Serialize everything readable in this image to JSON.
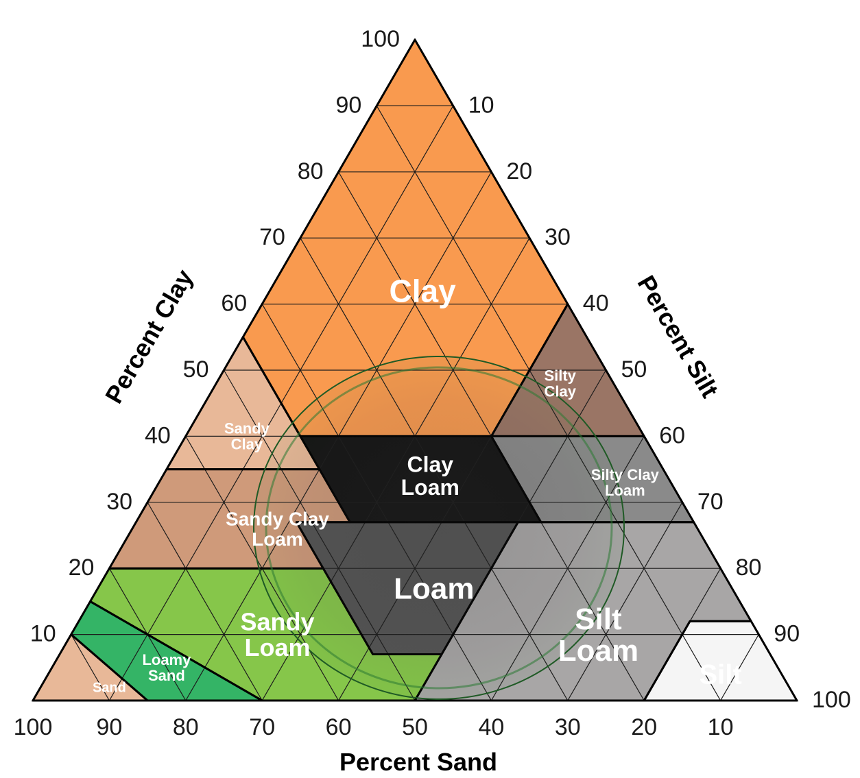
{
  "diagram": {
    "type": "soil-texture-triangle",
    "axes": {
      "clay": {
        "title": "Percent Clay",
        "ticks": [
          "10",
          "20",
          "30",
          "40",
          "50",
          "60",
          "70",
          "80",
          "90",
          "100"
        ]
      },
      "silt": {
        "title": "Percent Silt",
        "ticks": [
          "10",
          "20",
          "30",
          "40",
          "50",
          "60",
          "70",
          "80",
          "90",
          "100"
        ]
      },
      "sand": {
        "title": "Percent Sand",
        "ticks": [
          "100",
          "90",
          "80",
          "70",
          "60",
          "50",
          "40",
          "30",
          "20",
          "10"
        ]
      }
    },
    "regions": [
      {
        "id": "clay",
        "lines": [
          "Clay"
        ],
        "color": "#f99a4f"
      },
      {
        "id": "silty-clay",
        "lines": [
          "Silty",
          "Clay"
        ],
        "color": "#9a7565"
      },
      {
        "id": "sandy-clay",
        "lines": [
          "Sandy",
          "Clay"
        ],
        "color": "#e8b898"
      },
      {
        "id": "clay-loam",
        "lines": [
          "Clay",
          "Loam"
        ],
        "color": "#141414"
      },
      {
        "id": "silty-clay-loam",
        "lines": [
          "Silty Clay",
          "Loam"
        ],
        "color": "#8a8a8a"
      },
      {
        "id": "sandy-clay-loam",
        "lines": [
          "Sandy Clay",
          "Loam"
        ],
        "color": "#cf9a7a"
      },
      {
        "id": "loam",
        "lines": [
          "Loam"
        ],
        "color": "#545454"
      },
      {
        "id": "silt-loam",
        "lines": [
          "Silt",
          "Loam"
        ],
        "color": "#a8a6a6"
      },
      {
        "id": "sandy-loam",
        "lines": [
          "Sandy",
          "Loam"
        ],
        "color": "#86c64a"
      },
      {
        "id": "loamy-sand",
        "lines": [
          "Loamy",
          "Sand"
        ],
        "color": "#34b466"
      },
      {
        "id": "sand",
        "lines": [
          "Sand"
        ],
        "color": "#e8b898"
      },
      {
        "id": "silt",
        "lines": [
          "Silt"
        ],
        "color": "#f5f5f5"
      }
    ]
  }
}
